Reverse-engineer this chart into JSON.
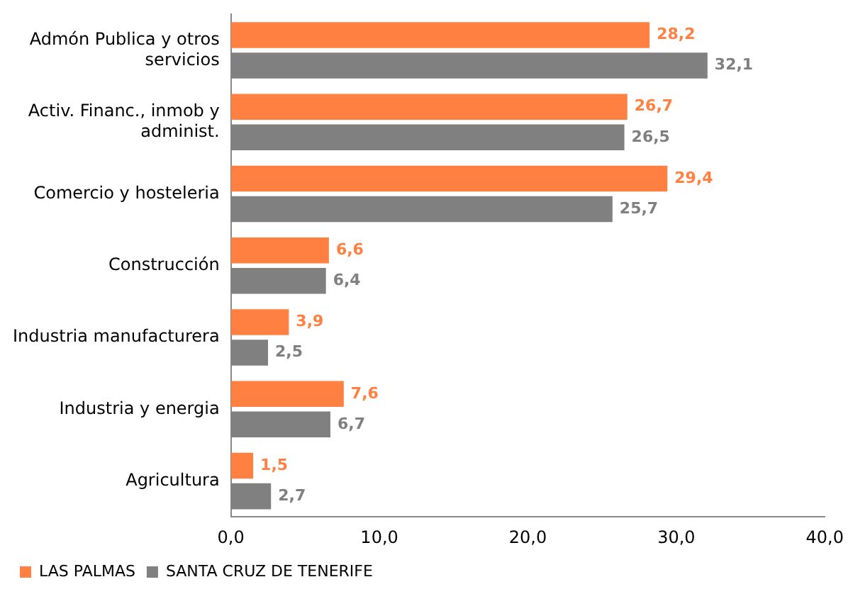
{
  "chart_data": {
    "type": "bar",
    "orientation": "horizontal",
    "categories": [
      "Admón Publica y otros servicios",
      "Activ. Financ., inmob y administ.",
      "Comercio y hosteleria",
      "Construcción",
      "Industria manufacturera",
      "Industria y energia",
      "Agricultura"
    ],
    "series": [
      {
        "name": "LAS PALMAS",
        "color": "#ff8040",
        "values": [
          28.2,
          26.7,
          29.4,
          6.6,
          3.9,
          7.6,
          1.5
        ],
        "value_labels": [
          "28,2",
          "26,7",
          "29,4",
          "6,6",
          "3,9",
          "7,6",
          "1,5"
        ]
      },
      {
        "name": "SANTA CRUZ DE TENERIFE",
        "color": "#808080",
        "values": [
          32.1,
          26.5,
          25.7,
          6.4,
          2.5,
          6.7,
          2.7
        ],
        "value_labels": [
          "32,1",
          "26,5",
          "25,7",
          "6,4",
          "2,5",
          "6,7",
          "2,7"
        ]
      }
    ],
    "xlim": [
      0,
      40
    ],
    "xticks": [
      {
        "value": 0,
        "label": "0,0"
      },
      {
        "value": 10,
        "label": "10,0"
      },
      {
        "value": 20,
        "label": "20,0"
      },
      {
        "value": 30,
        "label": "30,0"
      },
      {
        "value": 40,
        "label": "40,0"
      }
    ],
    "legend": "bottom left",
    "grid": false
  }
}
